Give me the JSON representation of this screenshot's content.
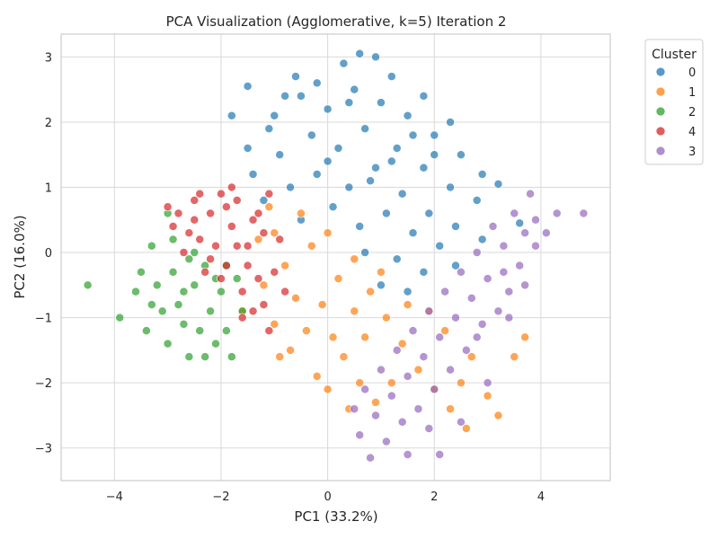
{
  "chart_data": {
    "type": "scatter",
    "title": "PCA Visualization (Agglomerative, k=5) Iteration 2",
    "xlabel": "PC1 (33.2%)",
    "ylabel": "PC2 (16.0%)",
    "xlim": [
      -5.0,
      5.3
    ],
    "ylim": [
      -3.5,
      3.35
    ],
    "xticks": [
      -4,
      -2,
      0,
      2,
      4
    ],
    "xtick_labels": [
      "−4",
      "−2",
      "0",
      "2",
      "4"
    ],
    "yticks": [
      -3,
      -2,
      -1,
      0,
      1,
      2,
      3
    ],
    "ytick_labels": [
      "−3",
      "−2",
      "−1",
      "0",
      "1",
      "2",
      "3"
    ],
    "grid": true,
    "legend": {
      "title": "Cluster",
      "placement": "outside-top-right",
      "entries": [
        {
          "label": "0",
          "color": "#1f77b4"
        },
        {
          "label": "1",
          "color": "#ff7f0e"
        },
        {
          "label": "2",
          "color": "#2ca02c"
        },
        {
          "label": "4",
          "color": "#d62728"
        },
        {
          "label": "3",
          "color": "#9467bd"
        }
      ]
    },
    "series": [
      {
        "name": "0",
        "color": "#1f77b4",
        "points": [
          [
            -0.6,
            2.7
          ],
          [
            0.3,
            2.9
          ],
          [
            0.6,
            3.05
          ],
          [
            0.9,
            3.0
          ],
          [
            -1.5,
            2.55
          ],
          [
            1.2,
            2.7
          ],
          [
            1.8,
            2.4
          ],
          [
            2.3,
            2.0
          ],
          [
            -1.8,
            2.1
          ],
          [
            -1.5,
            1.6
          ],
          [
            -1.0,
            2.1
          ],
          [
            -0.5,
            2.4
          ],
          [
            0.0,
            2.2
          ],
          [
            0.5,
            2.5
          ],
          [
            1.0,
            2.3
          ],
          [
            1.5,
            2.1
          ],
          [
            2.0,
            1.8
          ],
          [
            2.5,
            1.5
          ],
          [
            2.9,
            1.2
          ],
          [
            3.2,
            1.05
          ],
          [
            3.6,
            0.45
          ],
          [
            -1.4,
            1.2
          ],
          [
            -0.9,
            1.5
          ],
          [
            -0.3,
            1.8
          ],
          [
            0.2,
            1.6
          ],
          [
            0.7,
            1.9
          ],
          [
            1.3,
            1.6
          ],
          [
            1.8,
            1.3
          ],
          [
            2.3,
            1.0
          ],
          [
            2.8,
            0.8
          ],
          [
            -1.2,
            0.8
          ],
          [
            -0.7,
            1.0
          ],
          [
            -0.2,
            1.2
          ],
          [
            0.4,
            1.0
          ],
          [
            0.9,
            1.3
          ],
          [
            1.4,
            0.9
          ],
          [
            1.9,
            0.6
          ],
          [
            2.4,
            0.4
          ],
          [
            2.9,
            0.2
          ],
          [
            -0.5,
            0.5
          ],
          [
            0.1,
            0.7
          ],
          [
            0.6,
            0.4
          ],
          [
            1.1,
            0.6
          ],
          [
            1.6,
            0.3
          ],
          [
            2.1,
            0.1
          ],
          [
            0.7,
            0.0
          ],
          [
            1.3,
            -0.1
          ],
          [
            1.8,
            -0.3
          ],
          [
            2.4,
            -0.2
          ],
          [
            1.0,
            -0.5
          ],
          [
            1.5,
            -0.6
          ],
          [
            -0.2,
            2.6
          ],
          [
            0.4,
            2.3
          ],
          [
            1.6,
            1.8
          ],
          [
            -1.1,
            1.9
          ],
          [
            0.8,
            1.1
          ],
          [
            1.2,
            1.4
          ],
          [
            0.0,
            1.4
          ],
          [
            2.0,
            1.5
          ],
          [
            -0.8,
            2.4
          ]
        ]
      },
      {
        "name": "1",
        "color": "#ff7f0e",
        "points": [
          [
            -0.5,
            0.6
          ],
          [
            -1.0,
            0.3
          ],
          [
            -0.8,
            -0.2
          ],
          [
            -1.2,
            -0.5
          ],
          [
            -1.0,
            -1.1
          ],
          [
            -0.7,
            -1.5
          ],
          [
            -0.4,
            -1.2
          ],
          [
            -0.1,
            -0.8
          ],
          [
            0.2,
            -0.4
          ],
          [
            0.5,
            -0.1
          ],
          [
            0.8,
            -0.6
          ],
          [
            1.1,
            -1.0
          ],
          [
            1.4,
            -1.4
          ],
          [
            1.7,
            -1.8
          ],
          [
            2.0,
            -2.1
          ],
          [
            2.3,
            -2.4
          ],
          [
            2.6,
            -2.7
          ],
          [
            3.0,
            -2.2
          ],
          [
            3.5,
            -1.6
          ],
          [
            3.7,
            -1.3
          ],
          [
            0.0,
            0.3
          ],
          [
            0.3,
            -1.6
          ],
          [
            0.6,
            -2.0
          ],
          [
            0.9,
            -2.3
          ],
          [
            0.4,
            -2.4
          ],
          [
            -0.2,
            -1.9
          ],
          [
            -0.6,
            -0.7
          ],
          [
            0.1,
            -1.3
          ],
          [
            0.5,
            -0.9
          ],
          [
            1.0,
            -0.3
          ],
          [
            1.5,
            -0.8
          ],
          [
            2.2,
            -1.2
          ],
          [
            2.7,
            -1.6
          ],
          [
            -1.1,
            0.7
          ],
          [
            -0.3,
            0.1
          ],
          [
            0.7,
            -1.3
          ],
          [
            1.9,
            -0.9
          ],
          [
            -1.6,
            -0.9
          ],
          [
            -1.3,
            0.2
          ],
          [
            2.5,
            -2.0
          ],
          [
            3.2,
            -2.5
          ],
          [
            -0.9,
            -1.6
          ],
          [
            1.2,
            -2.0
          ],
          [
            0.0,
            -2.1
          ]
        ]
      },
      {
        "name": "2",
        "color": "#2ca02c",
        "points": [
          [
            -4.5,
            -0.5
          ],
          [
            -3.9,
            -1.0
          ],
          [
            -3.6,
            -0.6
          ],
          [
            -3.4,
            -1.2
          ],
          [
            -3.3,
            0.1
          ],
          [
            -3.1,
            -0.9
          ],
          [
            -3.0,
            -1.4
          ],
          [
            -2.9,
            -0.3
          ],
          [
            -2.8,
            -0.8
          ],
          [
            -2.7,
            -1.1
          ],
          [
            -2.6,
            -1.6
          ],
          [
            -2.5,
            -0.5
          ],
          [
            -2.4,
            -1.2
          ],
          [
            -2.3,
            -0.2
          ],
          [
            -2.2,
            -0.9
          ],
          [
            -2.1,
            -1.4
          ],
          [
            -2.0,
            -0.6
          ],
          [
            -1.9,
            -1.2
          ],
          [
            -1.8,
            -1.6
          ],
          [
            -1.7,
            -0.4
          ],
          [
            -1.6,
            -0.9
          ],
          [
            -3.5,
            -0.3
          ],
          [
            -3.2,
            -0.5
          ],
          [
            -2.9,
            0.2
          ],
          [
            -3.0,
            0.6
          ],
          [
            -2.6,
            -0.1
          ],
          [
            -2.3,
            -1.6
          ],
          [
            -1.9,
            -0.2
          ],
          [
            -2.7,
            -0.6
          ],
          [
            -3.3,
            -0.8
          ],
          [
            -2.1,
            -0.4
          ],
          [
            -2.5,
            0.0
          ]
        ]
      },
      {
        "name": "4",
        "color": "#d62728",
        "points": [
          [
            -3.0,
            0.7
          ],
          [
            -2.8,
            0.6
          ],
          [
            -2.6,
            0.3
          ],
          [
            -2.5,
            0.8
          ],
          [
            -2.4,
            0.2
          ],
          [
            -2.3,
            -0.3
          ],
          [
            -2.2,
            0.6
          ],
          [
            -2.1,
            0.1
          ],
          [
            -2.0,
            0.9
          ],
          [
            -1.9,
            -0.2
          ],
          [
            -1.8,
            0.4
          ],
          [
            -1.7,
            0.8
          ],
          [
            -1.6,
            -0.6
          ],
          [
            -1.5,
            0.1
          ],
          [
            -1.4,
            0.5
          ],
          [
            -1.3,
            -0.4
          ],
          [
            -1.2,
            0.3
          ],
          [
            -1.1,
            0.9
          ],
          [
            -1.0,
            -0.3
          ],
          [
            -0.9,
            0.2
          ],
          [
            -0.8,
            -0.6
          ],
          [
            -2.7,
            0.0
          ],
          [
            -2.9,
            0.4
          ],
          [
            -2.4,
            0.9
          ],
          [
            -1.9,
            0.7
          ],
          [
            -1.6,
            -1.0
          ],
          [
            -1.4,
            -0.9
          ],
          [
            -1.1,
            -1.2
          ],
          [
            -2.2,
            -0.1
          ],
          [
            -1.7,
            0.1
          ],
          [
            -1.3,
            0.6
          ],
          [
            -1.5,
            -0.2
          ],
          [
            -2.5,
            0.5
          ],
          [
            -2.0,
            -0.4
          ],
          [
            -1.8,
            1.0
          ],
          [
            -1.2,
            -0.8
          ]
        ]
      },
      {
        "name": "3",
        "color": "#9467bd",
        "points": [
          [
            4.8,
            0.6
          ],
          [
            4.3,
            0.6
          ],
          [
            3.9,
            0.5
          ],
          [
            3.8,
            0.9
          ],
          [
            3.7,
            0.3
          ],
          [
            3.6,
            -0.2
          ],
          [
            3.5,
            0.6
          ],
          [
            3.4,
            -0.6
          ],
          [
            3.3,
            0.1
          ],
          [
            3.2,
            -0.9
          ],
          [
            3.1,
            0.4
          ],
          [
            3.0,
            -0.4
          ],
          [
            2.9,
            -1.1
          ],
          [
            2.8,
            0.0
          ],
          [
            2.7,
            -0.7
          ],
          [
            2.6,
            -1.5
          ],
          [
            2.5,
            -0.3
          ],
          [
            2.4,
            -1.0
          ],
          [
            2.3,
            -1.8
          ],
          [
            2.2,
            -0.6
          ],
          [
            2.1,
            -1.3
          ],
          [
            2.0,
            -2.1
          ],
          [
            1.9,
            -0.9
          ],
          [
            1.8,
            -1.6
          ],
          [
            1.7,
            -2.4
          ],
          [
            1.6,
            -1.2
          ],
          [
            1.5,
            -1.9
          ],
          [
            1.4,
            -2.6
          ],
          [
            1.3,
            -1.5
          ],
          [
            1.2,
            -2.2
          ],
          [
            1.1,
            -2.9
          ],
          [
            1.0,
            -1.8
          ],
          [
            0.9,
            -2.5
          ],
          [
            0.8,
            -3.15
          ],
          [
            0.7,
            -2.1
          ],
          [
            0.6,
            -2.8
          ],
          [
            1.5,
            -3.1
          ],
          [
            2.1,
            -3.1
          ],
          [
            2.5,
            -2.6
          ],
          [
            3.0,
            -2.0
          ],
          [
            3.4,
            -1.0
          ],
          [
            3.7,
            -0.5
          ],
          [
            4.1,
            0.3
          ],
          [
            3.9,
            0.1
          ],
          [
            0.5,
            -2.4
          ],
          [
            2.8,
            -1.3
          ],
          [
            3.3,
            -0.3
          ],
          [
            1.9,
            -2.7
          ]
        ]
      }
    ]
  }
}
